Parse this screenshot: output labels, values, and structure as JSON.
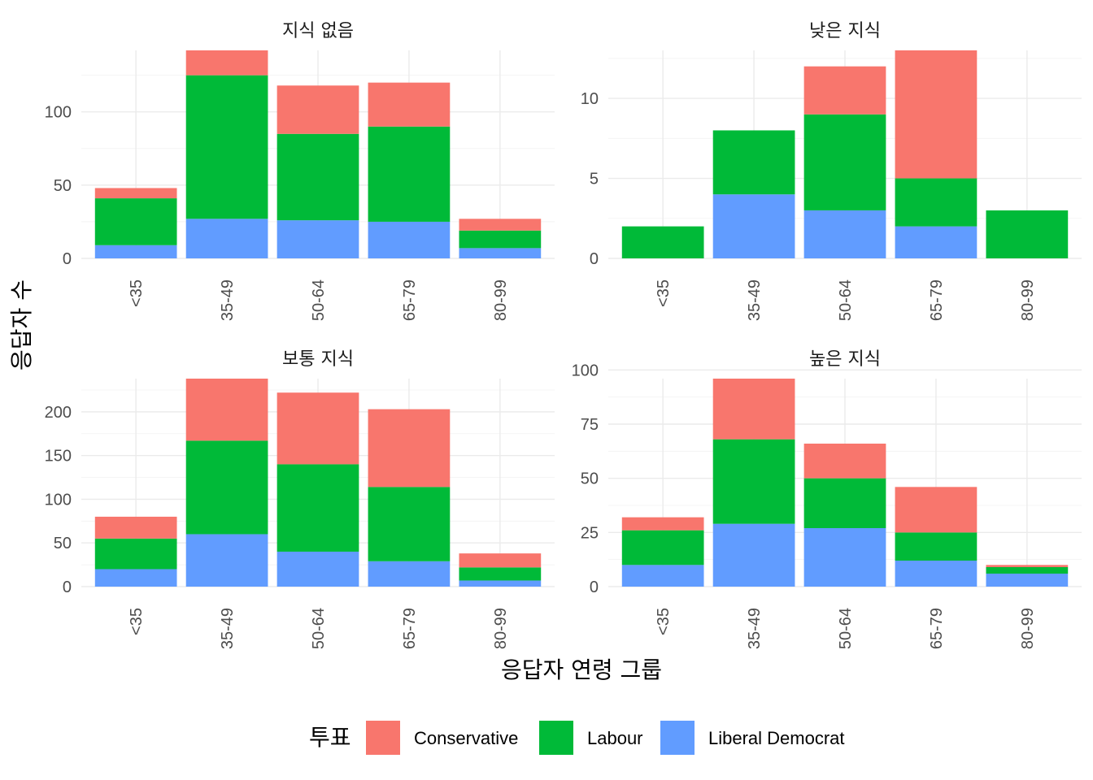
{
  "chart_data": {
    "type": "bar",
    "stacked": true,
    "xlabel": "응답자 연령 그룹",
    "ylabel": "응답자 수",
    "legend": {
      "title": "투표",
      "position": "bottom",
      "entries": [
        {
          "name": "Conservative",
          "color": "#F8766D"
        },
        {
          "name": "Labour",
          "color": "#00BA38"
        },
        {
          "name": "Liberal Democrat",
          "color": "#619CFF"
        }
      ]
    },
    "categories": [
      "<35",
      "35-49",
      "50-64",
      "65-79",
      "80-99"
    ],
    "panels": [
      {
        "title": "지식 없음",
        "ylim": [
          0,
          142
        ],
        "yticks": [
          0,
          50,
          100
        ],
        "series": [
          {
            "name": "Liberal Democrat",
            "values": [
              9,
              27,
              26,
              25,
              7
            ]
          },
          {
            "name": "Labour",
            "values": [
              32,
              98,
              59,
              65,
              12
            ]
          },
          {
            "name": "Conservative",
            "values": [
              7,
              17,
              33,
              30,
              8
            ]
          }
        ]
      },
      {
        "title": "낮은 지식",
        "ylim": [
          0,
          13
        ],
        "yticks": [
          0,
          5,
          10
        ],
        "series": [
          {
            "name": "Liberal Democrat",
            "values": [
              0,
              4,
              3,
              2,
              0
            ]
          },
          {
            "name": "Labour",
            "values": [
              2,
              4,
              6,
              3,
              3
            ]
          },
          {
            "name": "Conservative",
            "values": [
              0,
              0,
              3,
              8,
              0
            ]
          }
        ]
      },
      {
        "title": "보통 지식",
        "ylim": [
          0,
          238
        ],
        "yticks": [
          0,
          50,
          100,
          150,
          200
        ],
        "series": [
          {
            "name": "Liberal Democrat",
            "values": [
              20,
              60,
              40,
              29,
              7
            ]
          },
          {
            "name": "Labour",
            "values": [
              35,
              107,
              100,
              85,
              15
            ]
          },
          {
            "name": "Conservative",
            "values": [
              25,
              71,
              82,
              89,
              16
            ]
          }
        ]
      },
      {
        "title": "높은 지식",
        "ylim": [
          0,
          96
        ],
        "yticks": [
          0,
          25,
          50,
          75,
          100
        ],
        "series": [
          {
            "name": "Liberal Democrat",
            "values": [
              10,
              29,
              27,
              12,
              6
            ]
          },
          {
            "name": "Labour",
            "values": [
              16,
              39,
              23,
              13,
              3
            ]
          },
          {
            "name": "Conservative",
            "values": [
              6,
              28,
              16,
              21,
              1
            ]
          }
        ]
      }
    ]
  }
}
